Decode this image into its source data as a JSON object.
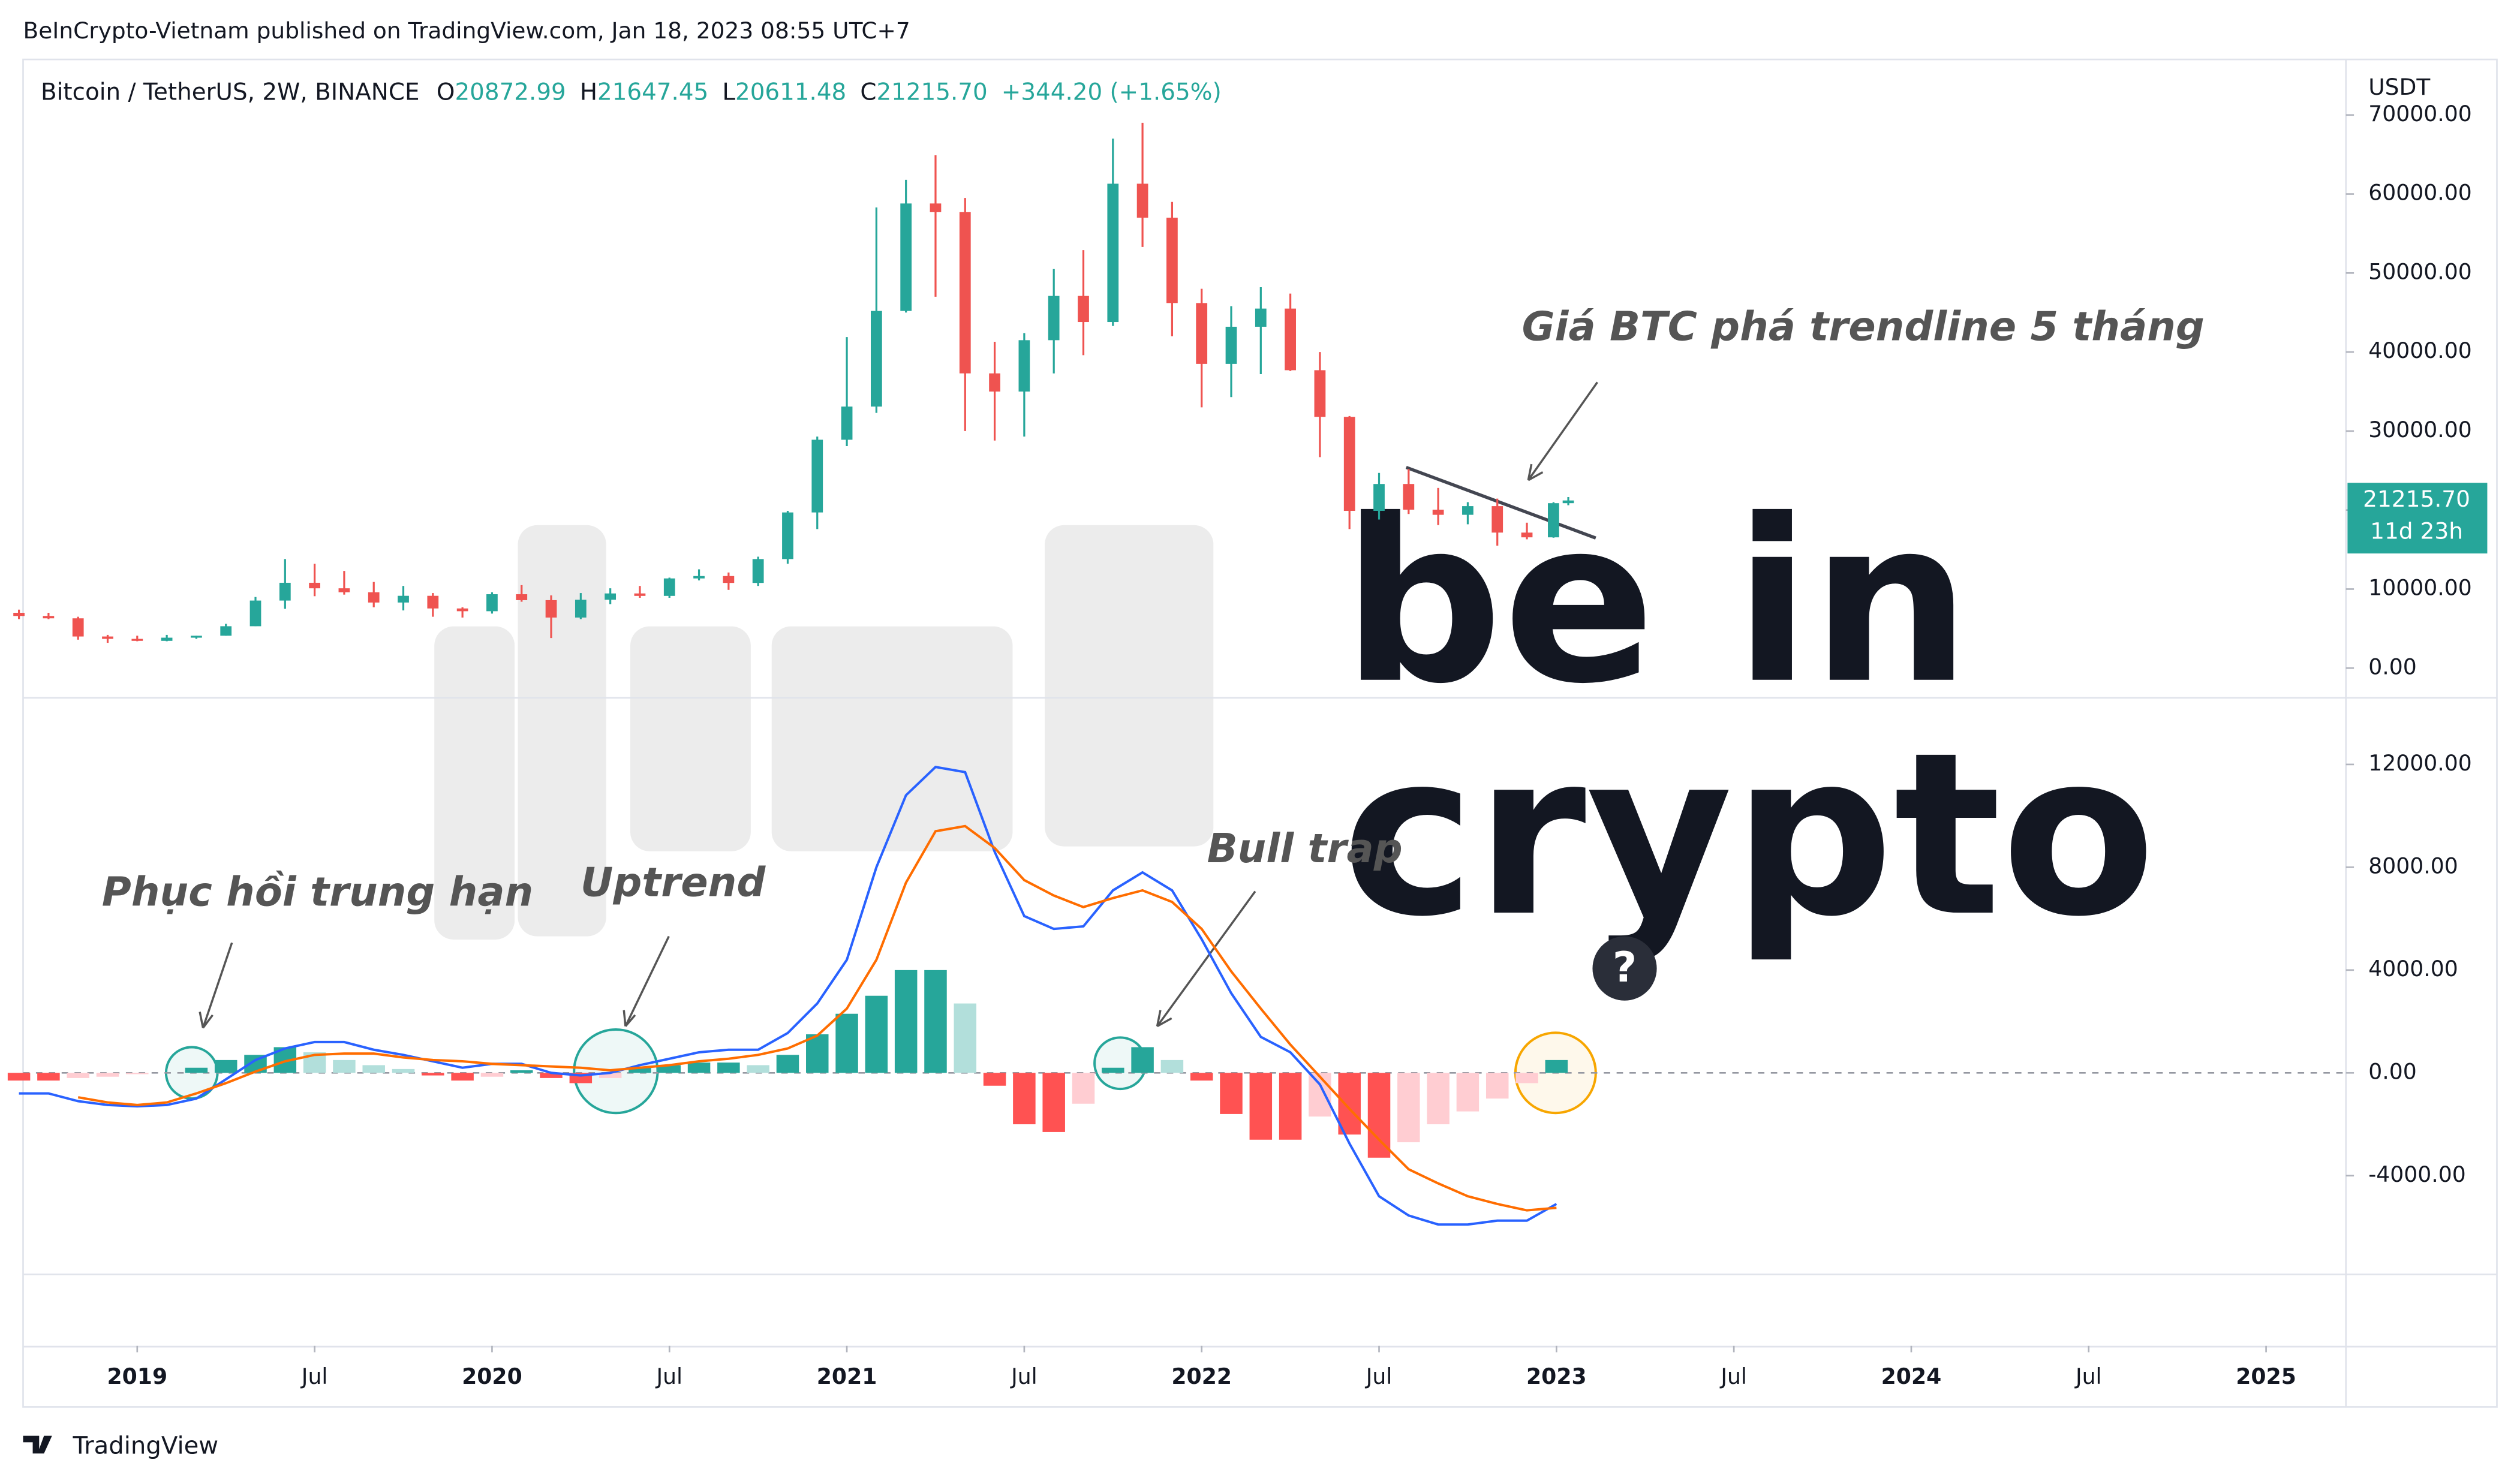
{
  "header": {
    "published": "BeInCrypto-Vietnam published on TradingView.com, Jan 18, 2023 08:55 UTC+7",
    "symbol": "Bitcoin / TetherUS, 2W, BINANCE",
    "ohlc": [
      {
        "label": "O",
        "value": "20872.99"
      },
      {
        "label": "H",
        "value": "21647.45"
      },
      {
        "label": "L",
        "value": "20611.48"
      },
      {
        "label": "C",
        "value": "21215.70"
      }
    ],
    "change": "+344.20 (+1.65%)",
    "currency": "USDT",
    "brand": "TradingView"
  },
  "watermark": [
    "be in",
    "crypto"
  ],
  "chart_data": [
    {
      "type": "candlestick",
      "up_color": "#26a69a",
      "down_color": "#ef5350",
      "last_price_label": "21215.70",
      "countdown": "11d 23h",
      "annotation": "Giá BTC phá trendline 5 tháng",
      "xlim": [
        -3.86,
        74.7
      ],
      "x": [
        -4,
        -3,
        -2,
        -1,
        0,
        1,
        2,
        3,
        4,
        5,
        6,
        7,
        8,
        9,
        10,
        11,
        12,
        13,
        14,
        15,
        16,
        17,
        18,
        19,
        20,
        21,
        22,
        23,
        24,
        25,
        26,
        27,
        28,
        29,
        30,
        31,
        32,
        33,
        34,
        35,
        36,
        37,
        38,
        39,
        40,
        41,
        42,
        43,
        44,
        45,
        46,
        47,
        47.9,
        48.4
      ],
      "open": [
        7000,
        6600,
        6300,
        4000,
        3700,
        3450,
        3850,
        4100,
        5300,
        8550,
        10800,
        10100,
        9600,
        8300,
        9150,
        7550,
        7200,
        9350,
        8600,
        6400,
        8650,
        9450,
        9140,
        11350,
        11650,
        10780,
        13800,
        19700,
        28900,
        33100,
        45200,
        58800,
        57700,
        37300,
        35000,
        41500,
        47100,
        43800,
        61300,
        57000,
        46200,
        38500,
        43200,
        45500,
        37700,
        31800,
        19900,
        23300,
        20050,
        19400,
        20500,
        17150,
        16550,
        20872.99
      ],
      "high": [
        7400,
        7000,
        6500,
        4200,
        4100,
        4200,
        4100,
        5600,
        9000,
        13800,
        13200,
        12300,
        10900,
        10400,
        9500,
        7700,
        9600,
        10500,
        9200,
        9500,
        10100,
        10400,
        11450,
        12500,
        12100,
        14100,
        19900,
        29300,
        41900,
        58300,
        61800,
        64900,
        59500,
        41300,
        42400,
        50500,
        52900,
        67000,
        69000,
        59000,
        48000,
        45800,
        48200,
        47400,
        40000,
        31900,
        24700,
        25200,
        22800,
        21000,
        21450,
        18400,
        21000,
        21647.45
      ],
      "low": [
        6200,
        6200,
        3600,
        3200,
        3400,
        3400,
        3700,
        4100,
        5300,
        7500,
        9100,
        9300,
        7700,
        7300,
        6500,
        6400,
        6900,
        8400,
        3800,
        6200,
        8100,
        8900,
        8900,
        11100,
        9900,
        10400,
        13200,
        17600,
        28100,
        32300,
        45000,
        47000,
        30000,
        28800,
        29300,
        37300,
        39600,
        43300,
        53300,
        42000,
        33000,
        34300,
        37200,
        37600,
        26700,
        17600,
        18800,
        19500,
        18100,
        18200,
        15500,
        16300,
        16500,
        20611.48
      ],
      "close": [
        6600,
        6300,
        4000,
        3700,
        3450,
        3850,
        4100,
        5300,
        8550,
        10800,
        10100,
        9600,
        8300,
        9150,
        7550,
        7200,
        9350,
        8600,
        6400,
        8650,
        9450,
        9140,
        11350,
        11650,
        10780,
        13800,
        19700,
        28900,
        33100,
        45200,
        58800,
        57700,
        37300,
        35000,
        41500,
        47100,
        43800,
        61300,
        57000,
        46200,
        38500,
        43200,
        45500,
        37700,
        31800,
        19900,
        23300,
        20050,
        19400,
        20500,
        17150,
        16550,
        20872.99,
        21215.7
      ],
      "ylim": [
        -3660,
        77030
      ],
      "yticks": [
        {
          "value": 0,
          "label": "0.00"
        },
        {
          "value": 10000,
          "label": "10000.00"
        },
        {
          "value": 20000,
          "label": "20000.00"
        },
        {
          "value": 30000,
          "label": "30000.00"
        },
        {
          "value": 40000,
          "label": "40000.00"
        },
        {
          "value": 50000,
          "label": "50000.00"
        },
        {
          "value": 60000,
          "label": "60000.00"
        },
        {
          "value": 70000,
          "label": "70000.00"
        }
      ]
    },
    {
      "type": "macd",
      "annotations": [
        "Phục hồi trung hạn",
        "Uptrend",
        "Bull trap",
        "?"
      ],
      "xlim": [
        -3.86,
        74.7
      ],
      "x": [
        -4,
        -3,
        -2,
        -1,
        0,
        1,
        2,
        3,
        4,
        5,
        6,
        7,
        8,
        9,
        10,
        11,
        12,
        13,
        14,
        15,
        16,
        17,
        18,
        19,
        20,
        21,
        22,
        23,
        24,
        25,
        26,
        27,
        28,
        29,
        30,
        31,
        32,
        33,
        34,
        35,
        36,
        37,
        38,
        39,
        40,
        41,
        42,
        43,
        44,
        45,
        46,
        47,
        48
      ],
      "xticks": [
        {
          "value": 0,
          "label": "2019"
        },
        {
          "value": 6,
          "label": "Jul"
        },
        {
          "value": 12,
          "label": "2020"
        },
        {
          "value": 18,
          "label": "Jul"
        },
        {
          "value": 24,
          "label": "2021"
        },
        {
          "value": 30,
          "label": "Jul"
        },
        {
          "value": 36,
          "label": "2022"
        },
        {
          "value": 42,
          "label": "Jul"
        },
        {
          "value": 48,
          "label": "2023"
        },
        {
          "value": 54,
          "label": "Jul"
        },
        {
          "value": 60,
          "label": "2024"
        },
        {
          "value": 66,
          "label": "Jul"
        },
        {
          "value": 72,
          "label": "2025"
        }
      ],
      "ylim": [
        -7810,
        14560
      ],
      "yticks": [
        {
          "value": -4000,
          "label": "-4000.00"
        },
        {
          "value": 0,
          "label": "0.00"
        },
        {
          "value": 4000,
          "label": "4000.00"
        },
        {
          "value": 8000,
          "label": "8000.00"
        },
        {
          "value": 12000,
          "label": "12000.00"
        }
      ],
      "histogram": {
        "colors": {
          "grow_up": "#26a69a",
          "fall_up": "#b2dfdb",
          "grow_down": "#ff5252",
          "fall_down": "#ffcdd2"
        },
        "values": [
          -300,
          -300,
          -200,
          -150,
          -50,
          0,
          200,
          500,
          700,
          1000,
          800,
          500,
          300,
          150,
          -100,
          -300,
          -150,
          100,
          -200,
          -400,
          -200,
          200,
          300,
          400,
          400,
          300,
          700,
          1500,
          2300,
          3000,
          4000,
          4000,
          2700,
          -500,
          -2000,
          -2300,
          -1200,
          200,
          1000,
          500,
          -300,
          -1600,
          -2600,
          -2600,
          -1700,
          -2400,
          -3300,
          -2700,
          -2000,
          -1500,
          -1000,
          -400,
          500
        ]
      },
      "series": [
        {
          "color": "#2962ff",
          "values": [
            -800,
            -800,
            -1100,
            -1250,
            -1300,
            -1250,
            -1000,
            -250,
            500,
            950,
            1200,
            1200,
            900,
            700,
            450,
            200,
            350,
            350,
            0,
            -100,
            0,
            300,
            550,
            800,
            900,
            900,
            1550,
            2700,
            4400,
            8000,
            10800,
            11900,
            11700,
            8600,
            6100,
            5600,
            5700,
            7100,
            7800,
            7100,
            5200,
            3100,
            1400,
            800,
            -450,
            -2750,
            -4800,
            -5550,
            -5900,
            -5900,
            -5750,
            -5750,
            -5100
          ]
        },
        {
          "color": "#ff6d00",
          "values": [
            null,
            null,
            -950,
            -1150,
            -1250,
            -1150,
            -800,
            -400,
            50,
            450,
            700,
            750,
            750,
            600,
            500,
            450,
            350,
            300,
            250,
            200,
            100,
            200,
            300,
            450,
            550,
            700,
            950,
            1450,
            2500,
            4400,
            7400,
            9400,
            9600,
            8750,
            7500,
            6900,
            6450,
            6800,
            7100,
            6650,
            5600,
            3950,
            2500,
            1100,
            -150,
            -1400,
            -2600,
            -3750,
            -4300,
            -4800,
            -5100,
            -5350,
            -5250
          ]
        }
      ]
    }
  ]
}
